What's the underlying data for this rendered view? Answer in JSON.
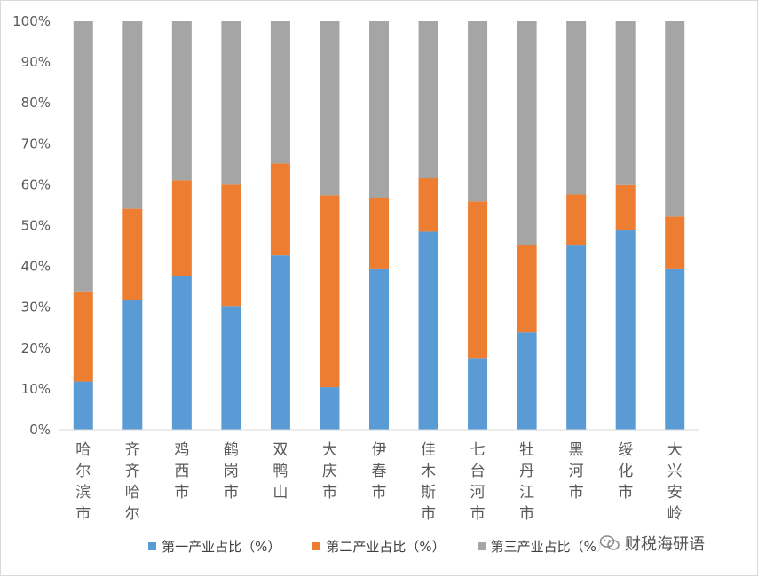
{
  "chart_data": {
    "type": "bar",
    "stacked": true,
    "percent": true,
    "categories": [
      "哈尔滨市",
      "齐齐哈尔",
      "鸡西市",
      "鹤岗市",
      "双鸭山",
      "大庆市",
      "伊春市",
      "佳木斯市",
      "七台河市",
      "牡丹江市",
      "黑河市",
      "绥化市",
      "大兴安岭"
    ],
    "series": [
      {
        "name": "第一产业占比（%）",
        "color": "#5b9bd5",
        "values": [
          11.8,
          31.8,
          37.7,
          30.3,
          42.7,
          10.4,
          39.5,
          48.5,
          17.5,
          23.8,
          45.1,
          48.8,
          39.5
        ]
      },
      {
        "name": "第二产业占比（%）",
        "color": "#ed7d31",
        "values": [
          22.1,
          22.3,
          23.4,
          29.7,
          22.5,
          47.0,
          17.3,
          13.1,
          38.4,
          21.5,
          12.5,
          11.1,
          12.7
        ]
      },
      {
        "name": "第三产业占比（%）",
        "color": "#a5a5a5",
        "values": [
          66.1,
          45.9,
          38.9,
          40.0,
          34.8,
          42.6,
          43.2,
          38.4,
          44.1,
          54.7,
          42.4,
          40.1,
          47.8
        ]
      }
    ],
    "yticks": [
      "0%",
      "10%",
      "20%",
      "30%",
      "40%",
      "50%",
      "60%",
      "70%",
      "80%",
      "90%",
      "100%"
    ],
    "ylim": [
      0,
      100
    ],
    "grid": false,
    "legend_position": "bottom"
  },
  "watermark": {
    "text": "财税海研语",
    "icon": "wechat-icon"
  }
}
